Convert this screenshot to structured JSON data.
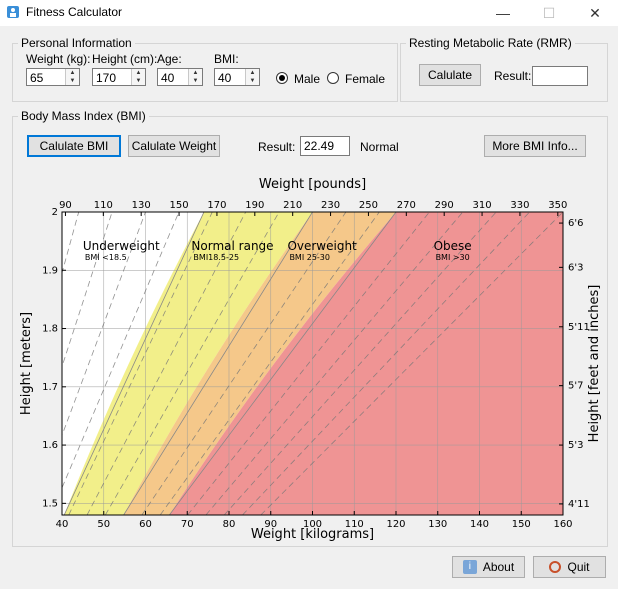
{
  "window": {
    "title": "Fitness Calculator",
    "minimize": "—",
    "maximize": "☐",
    "close": "✕"
  },
  "personal": {
    "group_label": "Personal Information",
    "weight_label": "Weight (kg):",
    "weight_value": "65",
    "height_label": "Height (cm):",
    "height_value": "170",
    "age_label": "Age:",
    "age_value": "40",
    "bmi_label": "BMI:",
    "bmi_value": "40",
    "male_label": "Male",
    "female_label": "Female",
    "selected_gender": "Male"
  },
  "rmr": {
    "group_label": "Resting Metabolic Rate (RMR)",
    "calculate_label": "Calulate",
    "result_label": "Result:",
    "result_value": ""
  },
  "bmi": {
    "group_label": "Body Mass Index (BMI)",
    "calc_bmi_label": "Calulate BMI",
    "calc_weight_label": "Calulate Weight",
    "result_label": "Result:",
    "result_value": "22.49",
    "category": "Normal",
    "more_info_label": "More BMI Info..."
  },
  "chart_data": {
    "type": "area",
    "xlabel_bottom": "Weight [kilograms]",
    "xlabel_top": "Weight [pounds]",
    "ylabel_left": "Height [meters]",
    "ylabel_right": "Height [feet and inches]",
    "xlim": [
      40,
      160
    ],
    "ylim": [
      1.48,
      2.0
    ],
    "x_ticks": [
      40,
      50,
      60,
      70,
      80,
      90,
      100,
      110,
      120,
      130,
      140,
      150,
      160
    ],
    "y_ticks": [
      1.5,
      1.6,
      1.7,
      1.8,
      1.9,
      2
    ],
    "y_tick_labels": [
      "1.5",
      "1.6",
      "1.7",
      "1.8",
      "1.9",
      "2"
    ],
    "top_ticks": [
      90,
      110,
      130,
      150,
      170,
      190,
      210,
      230,
      250,
      270,
      290,
      310,
      330,
      350
    ],
    "right_ticks": [
      "4'11",
      "5'3",
      "5'7",
      "5'11",
      "6'3",
      "6'6"
    ],
    "right_ticks_m": [
      1.499,
      1.6,
      1.702,
      1.803,
      1.905,
      1.981
    ],
    "bmi_boundaries": [
      18.5,
      25,
      30
    ],
    "dashed_bmi": [
      11,
      13,
      15,
      17,
      19,
      21,
      23,
      27,
      29,
      32,
      34,
      36,
      38,
      40
    ],
    "regions": [
      {
        "name": "Underweight",
        "sub": "BMI <18.5",
        "color": "#ffffff",
        "label_x": 45,
        "label_y": 1.935
      },
      {
        "name": "Normal range",
        "sub": "BMI18.5-25",
        "color": "#f2ef8a",
        "label_x": 71,
        "label_y": 1.935
      },
      {
        "name": "Overweight",
        "sub": "BMI 25-30",
        "color": "#f5c88a",
        "label_x": 94,
        "label_y": 1.935
      },
      {
        "name": "Obese",
        "sub": "BMI >30",
        "color": "#ef9494",
        "label_x": 129,
        "label_y": 1.935
      }
    ]
  },
  "footer": {
    "about_label": "About",
    "quit_label": "Quit"
  },
  "icons": {
    "app": "fitness-app-icon",
    "about": "info-icon",
    "quit": "stopwatch-icon"
  }
}
